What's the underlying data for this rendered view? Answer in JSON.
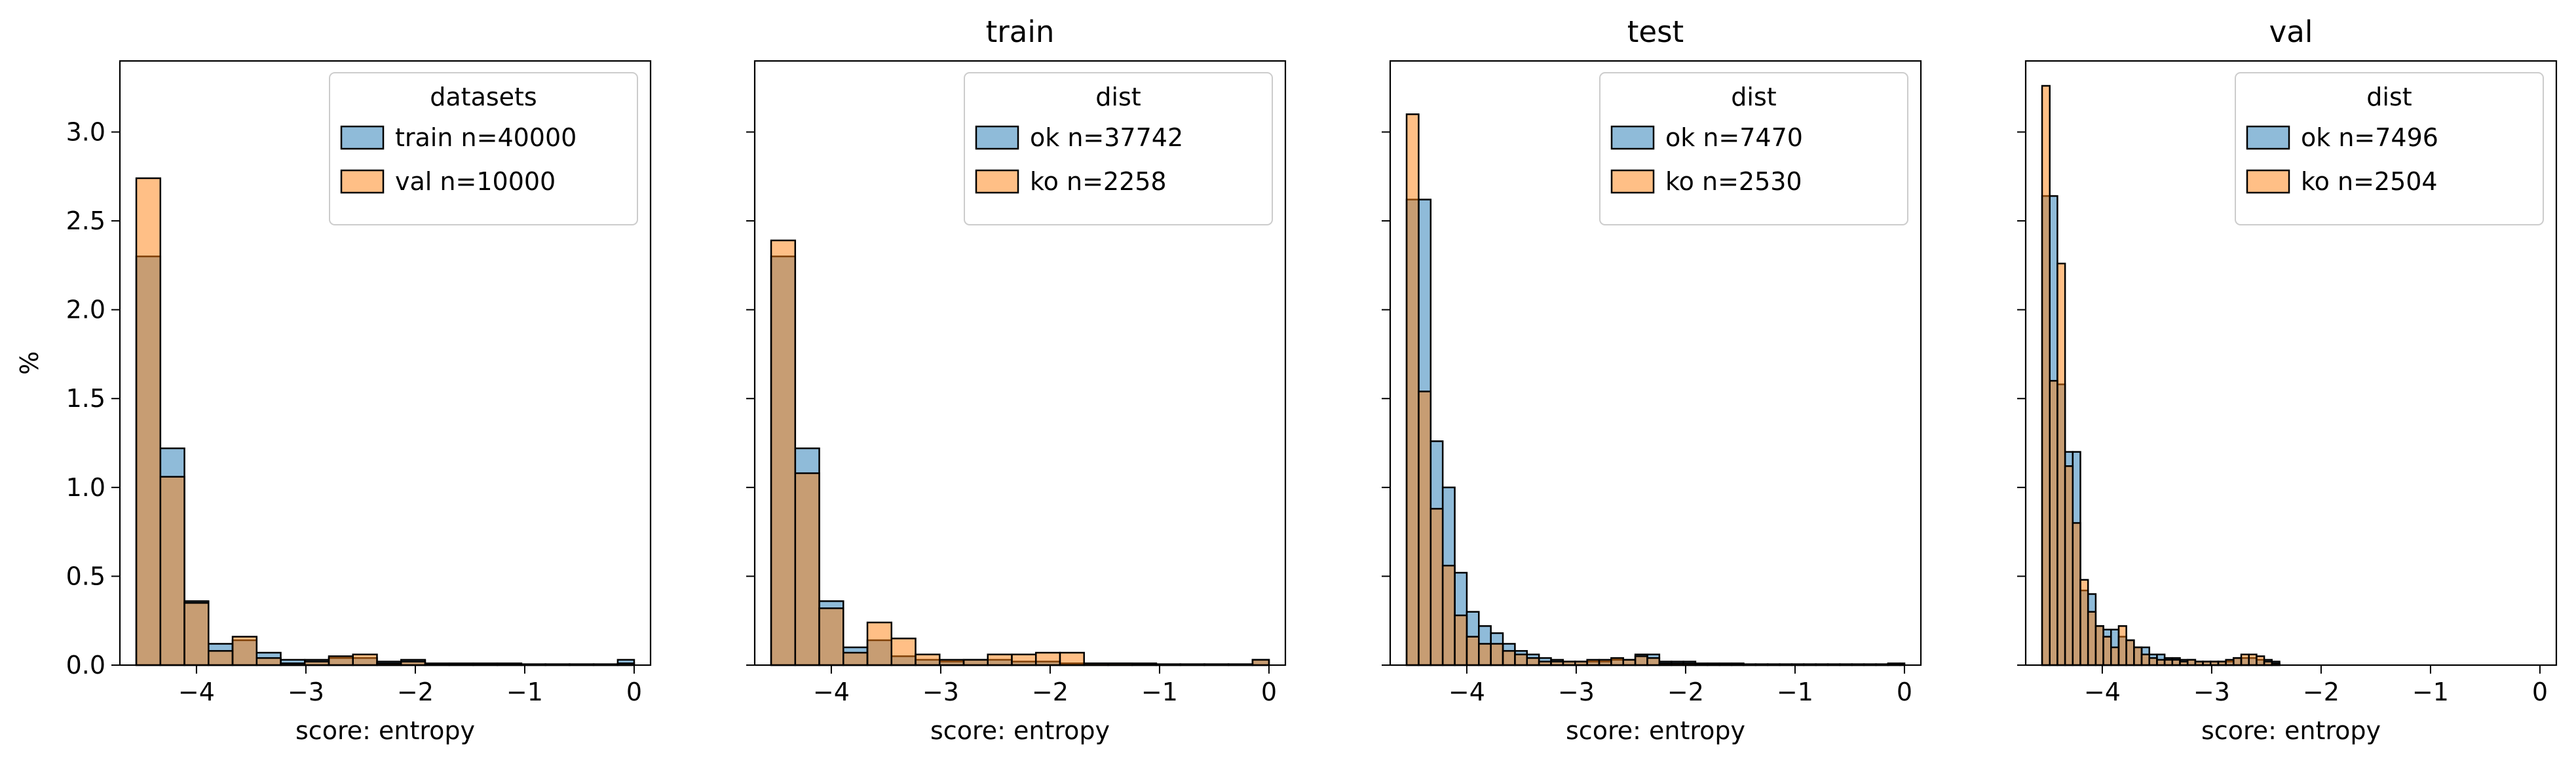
{
  "colors": {
    "blue": "#1f77b4",
    "orange": "#ff7f0e"
  },
  "figure": {
    "ylabel": "%"
  },
  "chart_data": [
    {
      "type": "bar",
      "title": "",
      "xlabel": "score: entropy",
      "ylabel": "%",
      "xlim": [
        -4.7,
        0.15
      ],
      "ylim": [
        0,
        3.4
      ],
      "xticks": [
        -4,
        -3,
        -2,
        -1,
        0
      ],
      "yticks": [
        0.0,
        0.5,
        1.0,
        1.5,
        2.0,
        2.5,
        3.0
      ],
      "grid": false,
      "legend": {
        "title": "datasets",
        "placement": "top-right"
      },
      "series": [
        {
          "name": "train n=40000",
          "color": "blue",
          "bin_edges": [
            -4.55,
            -4.33,
            -4.11,
            -3.89,
            -3.67,
            -3.45,
            -3.23,
            -3.01,
            -2.79,
            -2.57,
            -2.35,
            -2.13,
            -1.91,
            -1.69,
            -1.47,
            -1.25,
            -1.03,
            -0.81,
            -0.59,
            -0.37,
            -0.15,
            0.0
          ],
          "values": [
            2.3,
            1.22,
            0.36,
            0.12,
            0.14,
            0.07,
            0.03,
            0.03,
            0.04,
            0.04,
            0.02,
            0.03,
            0.01,
            0.01,
            0.01,
            0.01,
            0.005,
            0.005,
            0.005,
            0.005,
            0.03
          ]
        },
        {
          "name": "val n=10000",
          "color": "orange",
          "bin_edges": [
            -4.55,
            -4.33,
            -4.11,
            -3.89,
            -3.67,
            -3.45,
            -3.23,
            -3.01,
            -2.79,
            -2.57,
            -2.35,
            -2.13,
            -1.91,
            -1.69,
            -1.47,
            -1.25,
            -1.03,
            -0.81,
            -0.59,
            -0.37,
            -0.15,
            0.0
          ],
          "values": [
            2.74,
            1.06,
            0.35,
            0.08,
            0.16,
            0.04,
            0.01,
            0.02,
            0.05,
            0.06,
            0.01,
            0.02,
            0.005,
            0.005,
            0.005,
            0.005,
            0.005,
            0.005,
            0.005,
            0.005,
            0.01
          ]
        }
      ]
    },
    {
      "type": "bar",
      "title": "train",
      "xlabel": "score: entropy",
      "xlim": [
        -4.7,
        0.15
      ],
      "ylim": [
        0,
        3.4
      ],
      "xticks": [
        -4,
        -3,
        -2,
        -1,
        0
      ],
      "yticks": [
        0.0,
        0.5,
        1.0,
        1.5,
        2.0,
        2.5,
        3.0
      ],
      "grid": false,
      "legend": {
        "title": "dist",
        "placement": "top-right"
      },
      "series": [
        {
          "name": "ok n=37742",
          "color": "blue",
          "bin_edges": [
            -4.55,
            -4.33,
            -4.11,
            -3.89,
            -3.67,
            -3.45,
            -3.23,
            -3.01,
            -2.79,
            -2.57,
            -2.35,
            -2.13,
            -1.91,
            -1.69,
            -1.47,
            -1.25,
            -1.03,
            -0.81,
            -0.59,
            -0.37,
            -0.15,
            0.0
          ],
          "values": [
            2.3,
            1.22,
            0.36,
            0.1,
            0.14,
            0.05,
            0.03,
            0.02,
            0.03,
            0.03,
            0.02,
            0.02,
            0.01,
            0.01,
            0.01,
            0.01,
            0.005,
            0.005,
            0.005,
            0.005,
            0.03
          ]
        },
        {
          "name": "ko n=2258",
          "color": "orange",
          "bin_edges": [
            -4.55,
            -4.33,
            -4.11,
            -3.89,
            -3.67,
            -3.45,
            -3.23,
            -3.01,
            -2.79,
            -2.57,
            -2.35,
            -2.13,
            -1.91,
            -1.69,
            -1.47,
            -1.25,
            -1.03,
            -0.81,
            -0.59,
            -0.37,
            -0.15,
            0.0
          ],
          "values": [
            2.39,
            1.08,
            0.32,
            0.07,
            0.24,
            0.15,
            0.06,
            0.03,
            0.03,
            0.06,
            0.06,
            0.07,
            0.07,
            0.01,
            0.01,
            0.005,
            0.005,
            0.005,
            0.005,
            0.005,
            0.03
          ]
        }
      ]
    },
    {
      "type": "bar",
      "title": "test",
      "xlabel": "score: entropy",
      "xlim": [
        -4.7,
        0.15
      ],
      "ylim": [
        0,
        3.4
      ],
      "xticks": [
        -4,
        -3,
        -2,
        -1,
        0
      ],
      "yticks": [
        0.0,
        0.5,
        1.0,
        1.5,
        2.0,
        2.5,
        3.0
      ],
      "grid": false,
      "legend": {
        "title": "dist",
        "placement": "top-right"
      },
      "series": [
        {
          "name": "ok n=7470",
          "color": "blue",
          "bin_edges": [
            -4.55,
            -4.44,
            -4.33,
            -4.22,
            -4.11,
            -4.0,
            -3.89,
            -3.78,
            -3.67,
            -3.56,
            -3.45,
            -3.34,
            -3.23,
            -3.12,
            -3.01,
            -2.9,
            -2.79,
            -2.68,
            -2.57,
            -2.46,
            -2.35,
            -2.24,
            -2.13,
            -2.02,
            -1.91,
            -1.8,
            -1.69,
            -1.58,
            -1.47,
            -1.36,
            -1.25,
            -1.14,
            -1.03,
            -0.92,
            -0.81,
            -0.7,
            -0.59,
            -0.48,
            -0.37,
            -0.26,
            -0.15,
            -0.04,
            0.0
          ],
          "values": [
            2.62,
            2.62,
            1.26,
            1.0,
            0.52,
            0.3,
            0.22,
            0.18,
            0.12,
            0.08,
            0.06,
            0.04,
            0.03,
            0.02,
            0.02,
            0.02,
            0.02,
            0.03,
            0.03,
            0.06,
            0.06,
            0.02,
            0.02,
            0.02,
            0.01,
            0.01,
            0.01,
            0.01,
            0.005,
            0.005,
            0.005,
            0.005,
            0.005,
            0.005,
            0.005,
            0.005,
            0.005,
            0.005,
            0.005,
            0.005,
            0.01,
            0.01
          ]
        },
        {
          "name": "ko n=2530",
          "color": "orange",
          "bin_edges": [
            -4.55,
            -4.44,
            -4.33,
            -4.22,
            -4.11,
            -4.0,
            -3.89,
            -3.78,
            -3.67,
            -3.56,
            -3.45,
            -3.34,
            -3.23,
            -3.12,
            -3.01,
            -2.9,
            -2.79,
            -2.68,
            -2.57,
            -2.46,
            -2.35,
            -2.24,
            -2.13,
            -2.02,
            -1.91,
            -1.8,
            -1.69,
            -1.58,
            -1.47,
            -1.36,
            -1.25,
            -1.14,
            -1.03,
            -0.92,
            -0.81,
            -0.7,
            -0.59,
            -0.48,
            -0.37,
            -0.26,
            -0.15,
            -0.04,
            0.0
          ],
          "values": [
            3.1,
            1.54,
            0.88,
            0.56,
            0.28,
            0.16,
            0.12,
            0.12,
            0.08,
            0.06,
            0.04,
            0.02,
            0.02,
            0.02,
            0.02,
            0.03,
            0.03,
            0.04,
            0.03,
            0.05,
            0.04,
            0.01,
            0.01,
            0.01,
            0.005,
            0.005,
            0.005,
            0.005,
            0.005,
            0.005,
            0.005,
            0.005,
            0.005,
            0.005,
            0.005,
            0.005,
            0.005,
            0.005,
            0.005,
            0.005,
            0.005,
            0.005
          ]
        }
      ]
    },
    {
      "type": "bar",
      "title": "val",
      "xlabel": "score: entropy",
      "xlim": [
        -4.7,
        0.15
      ],
      "ylim": [
        0,
        3.4
      ],
      "xticks": [
        -4,
        -3,
        -2,
        -1,
        0
      ],
      "yticks": [
        0.0,
        0.5,
        1.0,
        1.5,
        2.0,
        2.5,
        3.0
      ],
      "grid": false,
      "legend": {
        "title": "dist",
        "placement": "top-right"
      },
      "series": [
        {
          "name": "ok n=7496",
          "color": "blue",
          "bin_edges": [
            -4.55,
            -4.48,
            -4.41,
            -4.34,
            -4.27,
            -4.2,
            -4.13,
            -4.06,
            -3.99,
            -3.92,
            -3.85,
            -3.78,
            -3.71,
            -3.64,
            -3.57,
            -3.5,
            -3.43,
            -3.36,
            -3.29,
            -3.22,
            -3.15,
            -3.08,
            -3.01,
            -2.94,
            -2.87,
            -2.8,
            -2.73,
            -2.66,
            -2.59,
            -2.52,
            -2.45,
            -2.38
          ],
          "values": [
            2.64,
            2.64,
            1.58,
            1.2,
            1.2,
            0.42,
            0.4,
            0.22,
            0.2,
            0.2,
            0.16,
            0.14,
            0.1,
            0.1,
            0.06,
            0.06,
            0.04,
            0.04,
            0.03,
            0.03,
            0.02,
            0.02,
            0.02,
            0.02,
            0.02,
            0.04,
            0.04,
            0.04,
            0.03,
            0.03,
            0.02
          ]
        },
        {
          "name": "ko n=2504",
          "color": "orange",
          "bin_edges": [
            -4.55,
            -4.48,
            -4.41,
            -4.34,
            -4.27,
            -4.2,
            -4.13,
            -4.06,
            -3.99,
            -3.92,
            -3.85,
            -3.78,
            -3.71,
            -3.64,
            -3.57,
            -3.5,
            -3.43,
            -3.36,
            -3.29,
            -3.22,
            -3.15,
            -3.08,
            -3.01,
            -2.94,
            -2.87,
            -2.8,
            -2.73,
            -2.66,
            -2.59,
            -2.52,
            -2.45,
            -2.38
          ],
          "values": [
            3.26,
            1.6,
            2.26,
            1.12,
            0.8,
            0.48,
            0.3,
            0.22,
            0.16,
            0.1,
            0.22,
            0.14,
            0.1,
            0.06,
            0.04,
            0.03,
            0.03,
            0.03,
            0.02,
            0.03,
            0.02,
            0.02,
            0.02,
            0.02,
            0.03,
            0.04,
            0.06,
            0.06,
            0.05,
            0.02,
            0.01
          ]
        }
      ]
    }
  ]
}
